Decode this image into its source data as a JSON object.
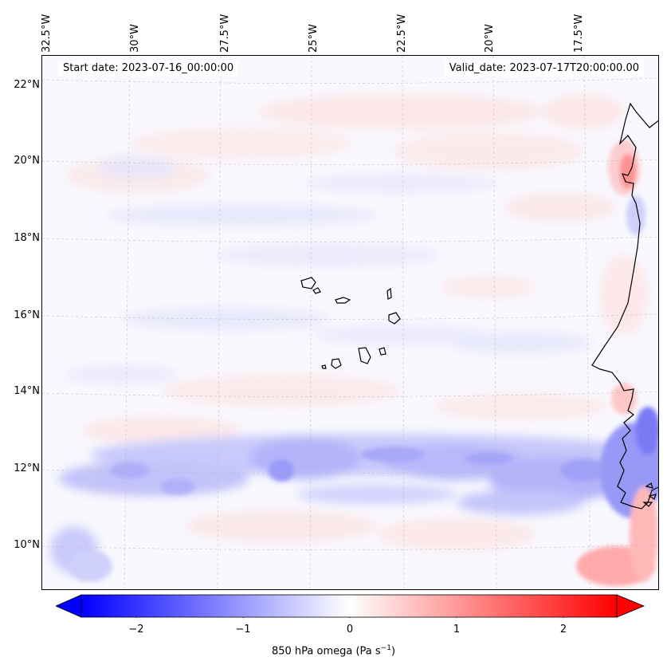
{
  "map": {
    "start_date_text": "Start date: 2023-07-16_00:00:00",
    "valid_date_text": "Valid_date: 2023-07-17T20:00:00.00",
    "lon_labels": [
      "32.5°W",
      "30°W",
      "27.5°W",
      "25°W",
      "22.5°W",
      "20°W",
      "17.5°W"
    ],
    "lat_labels": [
      "22°N",
      "20°N",
      "18°N",
      "16°N",
      "14°N",
      "12°N",
      "10°N"
    ],
    "field": "850 hPa omega",
    "extent": {
      "lon": [
        -32.8,
        -15.7
      ],
      "lat": [
        8.8,
        22.8
      ]
    },
    "colormap": "bwr",
    "colors": {
      "negative": "#0000ff",
      "zero": "#ffffff",
      "positive": "#ff0000",
      "coastline": "#000000"
    }
  },
  "colorbar": {
    "label_prefix": "850 hPa omega (Pa s",
    "label_exp": "−1",
    "label_suffix": ")",
    "ticks": [
      "−2",
      "−1",
      "0",
      "1",
      "2"
    ],
    "tick_values": [
      -2,
      -1,
      0,
      1,
      2
    ],
    "range": [
      -2.5,
      2.5
    ],
    "extend": "both"
  }
}
